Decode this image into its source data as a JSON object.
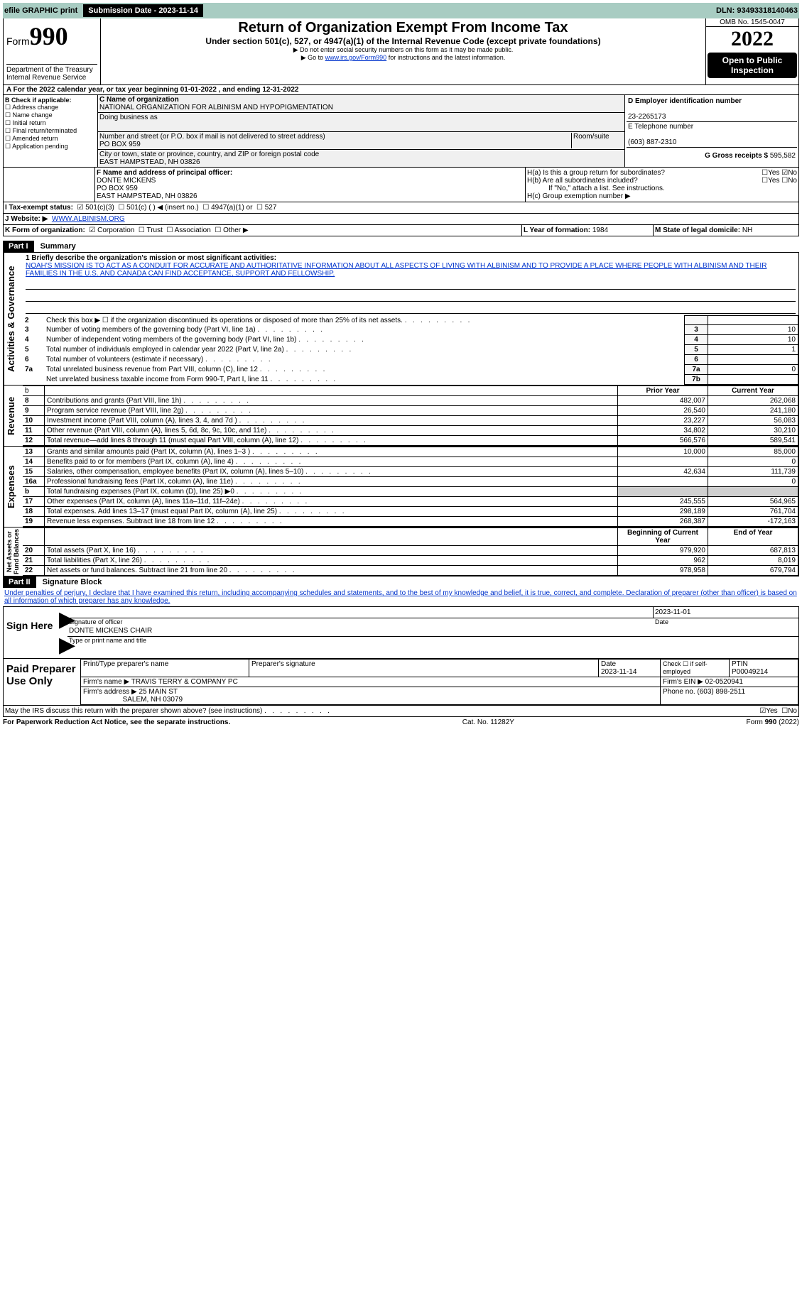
{
  "topbar": {
    "efile": "efile GRAPHIC print",
    "submission_label": "Submission Date - 2023-11-14",
    "dln_label": "DLN: 93493318140463"
  },
  "header": {
    "form_small": "Form",
    "form_big": "990",
    "title": "Return of Organization Exempt From Income Tax",
    "subtitle": "Under section 501(c), 527, or 4947(a)(1) of the Internal Revenue Code (except private foundations)",
    "warn1": "▶ Do not enter social security numbers on this form as it may be made public.",
    "warn2_pre": "▶ Go to ",
    "warn2_link": "www.irs.gov/Form990",
    "warn2_post": " for instructions and the latest information.",
    "dept": "Department of the Treasury\nInternal Revenue Service",
    "omb": "OMB No. 1545-0047",
    "year": "2022",
    "open": "Open to Public Inspection"
  },
  "A": {
    "line": "A For the 2022 calendar year, or tax year beginning 01-01-2022    , and ending 12-31-2022"
  },
  "B": {
    "label": "B Check if applicable:",
    "opts": [
      "Address change",
      "Name change",
      "Initial return",
      "Final return/terminated",
      "Amended return",
      "Application pending"
    ]
  },
  "C": {
    "label": "C Name of organization",
    "name": "NATIONAL ORGANIZATION FOR ALBINISM AND HYPOPIGMENTATION",
    "dba_label": "Doing business as",
    "addr_label": "Number and street (or P.O. box if mail is not delivered to street address)",
    "room_label": "Room/suite",
    "addr": "PO BOX 959",
    "city_label": "City or town, state or province, country, and ZIP or foreign postal code",
    "city": "EAST HAMPSTEAD, NH  03826"
  },
  "D": {
    "label": "D Employer identification number",
    "val": "23-2265173"
  },
  "E": {
    "label": "E Telephone number",
    "val": "(603) 887-2310"
  },
  "G": {
    "label": "G Gross receipts $",
    "val": "595,582"
  },
  "F": {
    "label": "F Name and address of principal officer:",
    "name": "DONTE MICKENS",
    "addr1": "PO BOX 959",
    "addr2": "EAST HAMPSTEAD, NH  03826"
  },
  "H": {
    "a": "H(a)  Is this a group return for subordinates?",
    "b": "H(b)  Are all subordinates included?",
    "note": "If \"No,\" attach a list. See instructions.",
    "c": "H(c)  Group exemption number ▶",
    "yes": "Yes",
    "no": "No"
  },
  "I": {
    "label": "I   Tax-exempt status:",
    "o1": "501(c)(3)",
    "o2": "501(c) (   ) ◀ (insert no.)",
    "o3": "4947(a)(1) or",
    "o4": "527"
  },
  "J": {
    "label": "J   Website: ▶",
    "val": "WWW.ALBINISM.ORG"
  },
  "K": {
    "label": "K Form of organization:",
    "o1": "Corporation",
    "o2": "Trust",
    "o3": "Association",
    "o4": "Other ▶"
  },
  "L": {
    "label": "L Year of formation: ",
    "val": "1984"
  },
  "M": {
    "label": "M State of legal domicile: ",
    "val": "NH"
  },
  "part1": {
    "tag": "Part I",
    "title": "Summary"
  },
  "summary": {
    "q1_label": "1  Briefly describe the organization's mission or most significant activities:",
    "q1_text": "NOAH'S MISSION IS TO ACT AS A CONDUIT FOR ACCURATE AND AUTHORITATIVE INFORMATION ABOUT ALL ASPECTS OF LIVING WITH ALBINISM AND TO PROVIDE A PLACE WHERE PEOPLE WITH ALBINISM AND THEIR FAMILIES IN THE U.S. AND CANADA CAN FIND ACCEPTANCE, SUPPORT AND FELLOWSHIP."
  },
  "actgov": {
    "rows": [
      {
        "n": "2",
        "t": "Check this box ▶ ☐  if the organization discontinued its operations or disposed of more than 25% of its net assets.",
        "boxnum": "",
        "v": ""
      },
      {
        "n": "3",
        "t": "Number of voting members of the governing body (Part VI, line 1a)",
        "boxnum": "3",
        "v": "10"
      },
      {
        "n": "4",
        "t": "Number of independent voting members of the governing body (Part VI, line 1b)",
        "boxnum": "4",
        "v": "10"
      },
      {
        "n": "5",
        "t": "Total number of individuals employed in calendar year 2022 (Part V, line 2a)",
        "boxnum": "5",
        "v": "1"
      },
      {
        "n": "6",
        "t": "Total number of volunteers (estimate if necessary)",
        "boxnum": "6",
        "v": ""
      },
      {
        "n": "7a",
        "t": "Total unrelated business revenue from Part VIII, column (C), line 12",
        "boxnum": "7a",
        "v": "0"
      },
      {
        "n": "",
        "t": "Net unrelated business taxable income from Form 990-T, Part I, line 11",
        "boxnum": "7b",
        "v": ""
      }
    ],
    "b_row": "b"
  },
  "cols": {
    "prior": "Prior Year",
    "current": "Current Year",
    "begin": "Beginning of Current Year",
    "end": "End of Year"
  },
  "revenue": [
    {
      "n": "8",
      "t": "Contributions and grants (Part VIII, line 1h)",
      "p": "482,007",
      "c": "262,068"
    },
    {
      "n": "9",
      "t": "Program service revenue (Part VIII, line 2g)",
      "p": "26,540",
      "c": "241,180"
    },
    {
      "n": "10",
      "t": "Investment income (Part VIII, column (A), lines 3, 4, and 7d )",
      "p": "23,227",
      "c": "56,083"
    },
    {
      "n": "11",
      "t": "Other revenue (Part VIII, column (A), lines 5, 6d, 8c, 9c, 10c, and 11e)",
      "p": "34,802",
      "c": "30,210"
    },
    {
      "n": "12",
      "t": "Total revenue—add lines 8 through 11 (must equal Part VIII, column (A), line 12)",
      "p": "566,576",
      "c": "589,541"
    }
  ],
  "expenses": [
    {
      "n": "13",
      "t": "Grants and similar amounts paid (Part IX, column (A), lines 1–3 )",
      "p": "10,000",
      "c": "85,000"
    },
    {
      "n": "14",
      "t": "Benefits paid to or for members (Part IX, column (A), line 4)",
      "p": "",
      "c": "0"
    },
    {
      "n": "15",
      "t": "Salaries, other compensation, employee benefits (Part IX, column (A), lines 5–10)",
      "p": "42,634",
      "c": "111,739"
    },
    {
      "n": "16a",
      "t": "Professional fundraising fees (Part IX, column (A), line 11e)",
      "p": "",
      "c": "0"
    },
    {
      "n": "b",
      "t": "Total fundraising expenses (Part IX, column (D), line 25) ▶0",
      "p": "GREY",
      "c": "GREY"
    },
    {
      "n": "17",
      "t": "Other expenses (Part IX, column (A), lines 11a–11d, 11f–24e)",
      "p": "245,555",
      "c": "564,965"
    },
    {
      "n": "18",
      "t": "Total expenses. Add lines 13–17 (must equal Part IX, column (A), line 25)",
      "p": "298,189",
      "c": "761,704"
    },
    {
      "n": "19",
      "t": "Revenue less expenses. Subtract line 18 from line 12",
      "p": "268,387",
      "c": "-172,163"
    }
  ],
  "netassets": [
    {
      "n": "20",
      "t": "Total assets (Part X, line 16)",
      "p": "979,920",
      "c": "687,813"
    },
    {
      "n": "21",
      "t": "Total liabilities (Part X, line 26)",
      "p": "962",
      "c": "8,019"
    },
    {
      "n": "22",
      "t": "Net assets or fund balances. Subtract line 21 from line 20",
      "p": "978,958",
      "c": "679,794"
    }
  ],
  "vert": {
    "ag": "Activities & Governance",
    "rev": "Revenue",
    "exp": "Expenses",
    "na": "Net Assets or\nFund Balances"
  },
  "part2": {
    "tag": "Part II",
    "title": "Signature Block"
  },
  "sig": {
    "perjury": "Under penalties of perjury, I declare that I have examined this return, including accompanying schedules and statements, and to the best of my knowledge and belief, it is true, correct, and complete. Declaration of preparer (other than officer) is based on all information of which preparer has any knowledge.",
    "date": "2023-11-01",
    "sig_label": "Signature of officer",
    "date_label": "Date",
    "name": "DONTE MICKENS  CHAIR",
    "name_label": "Type or print name and title",
    "sign_here": "Sign Here"
  },
  "paid": {
    "label": "Paid Preparer Use Only",
    "h1": "Print/Type preparer's name",
    "h2": "Preparer's signature",
    "h3": "Date",
    "h3v": "2023-11-14",
    "h4": "Check ☐ if self-employed",
    "h5": "PTIN",
    "h5v": "P00049214",
    "firm_label": "Firm's name    ▶",
    "firm": "TRAVIS TERRY & COMPANY PC",
    "ein_label": "Firm's EIN ▶",
    "ein": "02-0520941",
    "addr_label": "Firm's address ▶",
    "addr": "25 MAIN ST",
    "addr2": "SALEM, NH  03079",
    "phone_label": "Phone no.",
    "phone": "(603) 898-2511",
    "discuss": "May the IRS discuss this return with the preparer shown above? (see instructions)",
    "yes": "Yes",
    "no": "No"
  },
  "footer": {
    "l": "For Paperwork Reduction Act Notice, see the separate instructions.",
    "c": "Cat. No. 11282Y",
    "r": "Form 990 (2022)"
  }
}
